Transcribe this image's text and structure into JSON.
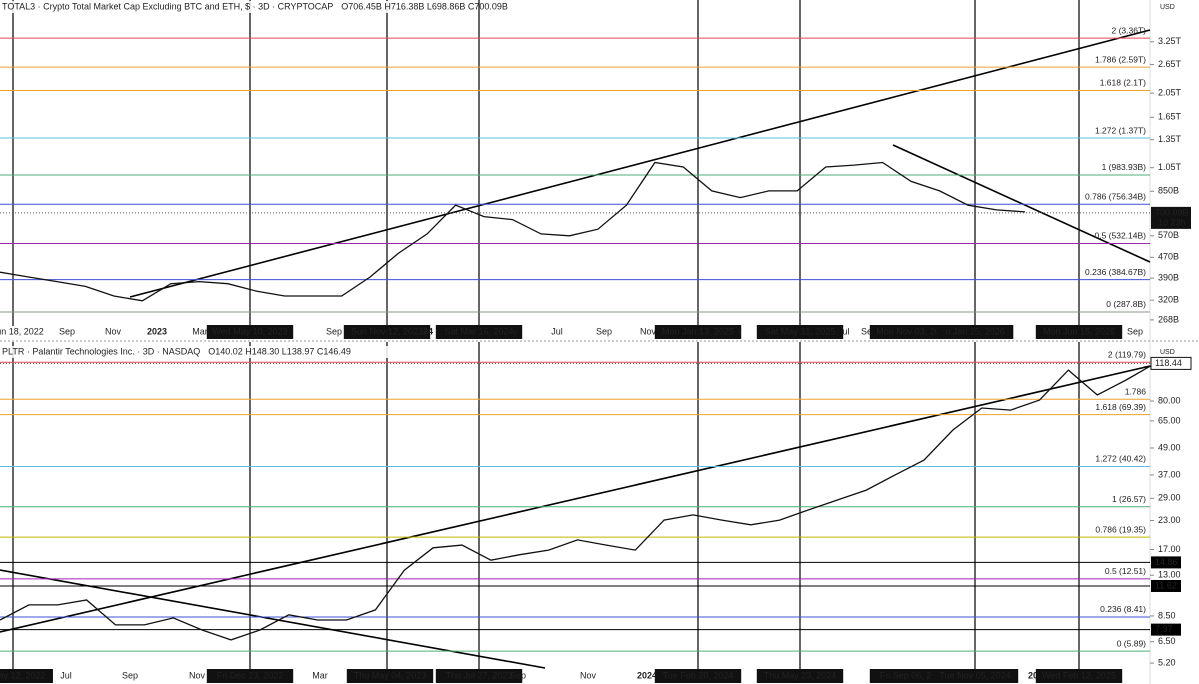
{
  "chart_data": [
    {
      "type": "line",
      "title": "TOTAL3 · Crypto Total Market Cap Excluding BTC and ETH, $ · 3D · CRYPTOCAP",
      "subtitle": "O706.45B H716.38B L698.86B C700.09B",
      "currency": "USD",
      "log_scale": true,
      "color": "#111111",
      "ylim": [
        263,
        4170
      ],
      "yticks": [
        {
          "value": 3250,
          "label": "3.25T"
        },
        {
          "value": 2650,
          "label": "2.65T"
        },
        {
          "value": 2050,
          "label": "2.05T"
        },
        {
          "value": 1650,
          "label": "1.65T"
        },
        {
          "value": 1350,
          "label": "1.35T"
        },
        {
          "value": 1050,
          "label": "1.05T"
        },
        {
          "value": 850,
          "label": "850B"
        },
        {
          "value": 570,
          "label": "570B"
        },
        {
          "value": 470,
          "label": "470B"
        },
        {
          "value": 390,
          "label": "390B"
        },
        {
          "value": 320,
          "label": "320B"
        },
        {
          "value": 268,
          "label": "268B"
        }
      ],
      "current": {
        "value": 700.09,
        "label": "700.09B"
      },
      "countdown": "1d 23h",
      "levels": [
        {
          "value": 3360,
          "label": "2 (3.36T)",
          "color": "#e8485a"
        },
        {
          "value": 2590,
          "label": "1.786 (2.59T)",
          "color": "#f0a030"
        },
        {
          "value": 2100,
          "label": "1.618 (2.1T)",
          "color": "#f0a030"
        },
        {
          "value": 1370,
          "label": "1.272 (1.37T)",
          "color": "#5bc0de"
        },
        {
          "value": 983.93,
          "label": "1 (983.93B)",
          "color": "#4caf7a"
        },
        {
          "value": 756.34,
          "label": "0.786 (756.34B)",
          "color": "#3f51d5"
        },
        {
          "value": 532.14,
          "label": "0.5 (532.14B)",
          "color": "#9c27b0"
        },
        {
          "value": 384.67,
          "label": "0.236 (384.67B)",
          "color": "#3f51d5"
        },
        {
          "value": 287.8,
          "label": "0 (287.8B)",
          "color": "#8a9a8a"
        }
      ],
      "x_labels": [
        "un 18, 2022",
        "Sep",
        "Nov",
        "2023",
        "Mar",
        "Wed May 10, 2023",
        "Sep",
        "Sun Nov 12, 2023",
        "24",
        "Sat Mar 16, 2024",
        "y",
        "Jul",
        "Sep",
        "Nov",
        "Mon Jan 13, 2025",
        "r",
        "Sat May 31, 2025",
        "ul",
        "Sep",
        "Mon Nov 03, 2025",
        "n Jan 25, 2026",
        "Mon Jun 15, 2026",
        "Sep"
      ],
      "values": [
        411,
        394,
        378,
        362,
        332,
        318,
        371,
        378,
        371,
        347,
        332,
        332,
        332,
        394,
        488,
        580,
        750,
        677,
        659,
        580,
        570,
        605,
        750,
        1100,
        1057,
        853,
        803,
        853,
        853,
        1057,
        1075,
        1100,
        929,
        853,
        750,
        719,
        706
      ]
    },
    {
      "type": "line",
      "title": "PLTR · Palantir Technologies Inc. · 3D · NASDAQ",
      "subtitle": "O140.02 H148.30 L138.97 C146.49",
      "currency": "USD",
      "log_scale": true,
      "color": "#111111",
      "ylim": [
        4.45,
        125.3
      ],
      "yticks": [
        {
          "value": 80,
          "label": "80.00"
        },
        {
          "value": 65,
          "label": "65.00"
        },
        {
          "value": 49,
          "label": "49.00"
        },
        {
          "value": 37,
          "label": "37.00"
        },
        {
          "value": 29,
          "label": "29.00"
        },
        {
          "value": 23,
          "label": "23.00"
        },
        {
          "value": 17,
          "label": "17.00"
        },
        {
          "value": 13,
          "label": "13.00"
        },
        {
          "value": 8.5,
          "label": "8.50"
        },
        {
          "value": 6.5,
          "label": "6.50"
        },
        {
          "value": 5.2,
          "label": "5.20"
        }
      ],
      "current": {
        "value": 118.44,
        "label": "118.44"
      },
      "price_lines": [
        14.86,
        11.62,
        7.37
      ],
      "levels": [
        {
          "value": 119.79,
          "label": "2 (119.79)",
          "color": "#e8485a"
        },
        {
          "value": 81.5,
          "label": "1.786",
          "color": "#f0a030"
        },
        {
          "value": 69.39,
          "label": "1.618 (69.39)",
          "color": "#f0a030"
        },
        {
          "value": 40.42,
          "label": "1.272 (40.42)",
          "color": "#5bc0de"
        },
        {
          "value": 26.57,
          "label": "1 (26.57)",
          "color": "#4caf7a"
        },
        {
          "value": 19.35,
          "label": "0.786 (19.35)",
          "color": "#c8b400"
        },
        {
          "value": 12.51,
          "label": "0.5 (12.51)",
          "color": "#9c27b0"
        },
        {
          "value": 8.41,
          "label": "0.236 (8.41)",
          "color": "#3f51d5"
        },
        {
          "value": 5.89,
          "label": "0 (5.89)",
          "color": "#4caf7a"
        }
      ],
      "x_labels": [
        "ay 12, 2022",
        "Jul",
        "Sep",
        "Nov",
        "Fri Dec 23, 2022",
        "Mar",
        "Thu May 04, 2023",
        "Thu Jul 27, 2023",
        "Sep",
        "Nov",
        "2024",
        "Tue Feb 20, 2024",
        "Thu May 23, 2024",
        "Fri Sep 06, 2024",
        "Tue Nov 05, 2024",
        "20",
        "Wed Feb 12, 2025"
      ],
      "values": [
        8.15,
        9.54,
        9.54,
        10.04,
        7.74,
        7.74,
        8.33,
        7.34,
        6.62,
        7.34,
        8.6,
        8.15,
        8.15,
        9.05,
        13.7,
        17.3,
        17.8,
        15.2,
        16.1,
        16.9,
        18.8,
        17.8,
        16.9,
        23.1,
        24.4,
        23.1,
        22.0,
        23.1,
        25.7,
        28.5,
        31.6,
        37.0,
        43.2,
        59.1,
        74.4,
        72.8,
        80.8,
        110.5,
        85.2,
        99.6,
        118.44
      ]
    }
  ]
}
